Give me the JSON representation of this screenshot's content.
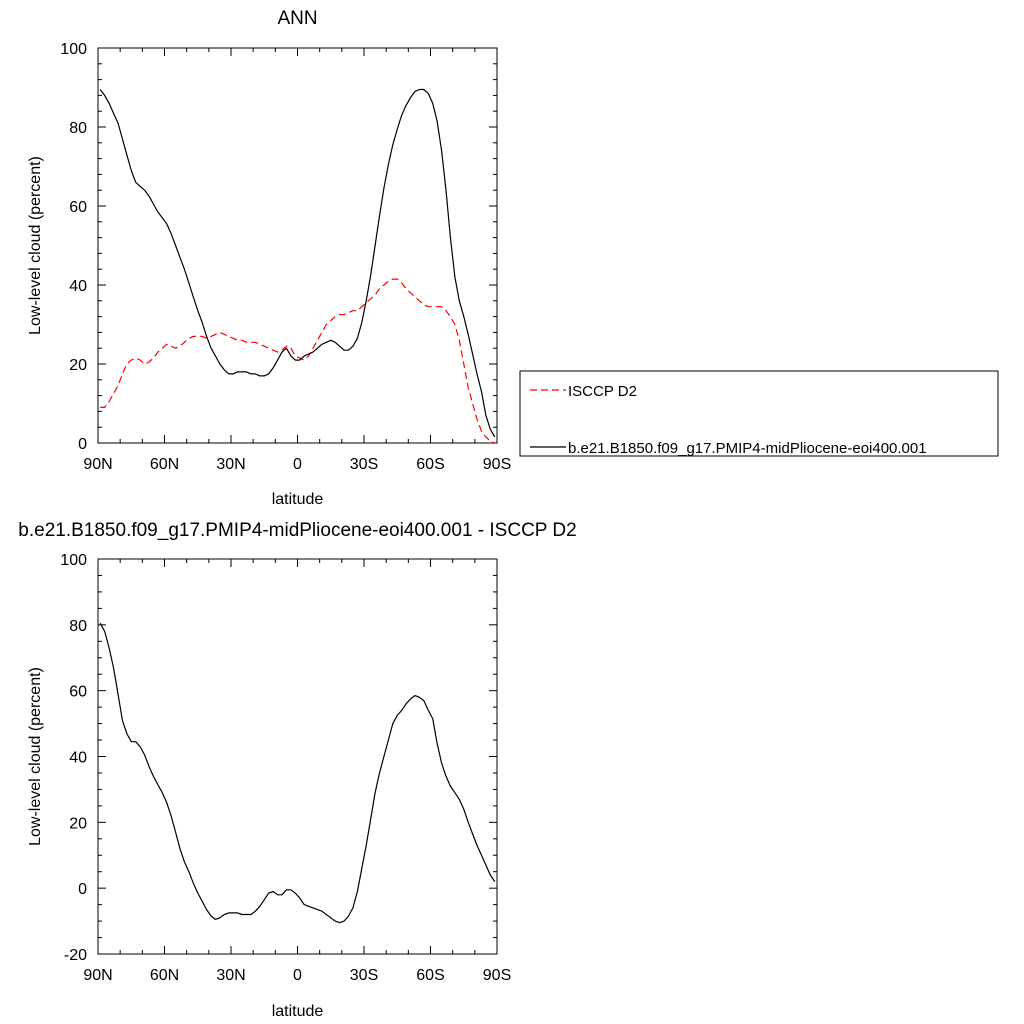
{
  "chart_data": [
    {
      "type": "line",
      "title": "ANN",
      "xlabel": "latitude",
      "ylabel": "Low-level cloud (percent)",
      "xlim": [
        90,
        -90
      ],
      "ylim": [
        0,
        100
      ],
      "x_ticks": [
        {
          "value": 90,
          "label": "90N"
        },
        {
          "value": 60,
          "label": "60N"
        },
        {
          "value": 30,
          "label": "30N"
        },
        {
          "value": 0,
          "label": "0"
        },
        {
          "value": -30,
          "label": "30S"
        },
        {
          "value": -60,
          "label": "60S"
        },
        {
          "value": -90,
          "label": "90S"
        }
      ],
      "y_ticks": [
        0,
        20,
        40,
        60,
        80,
        100
      ],
      "legend": {
        "placement": "right"
      },
      "series": [
        {
          "name": "ISCCP D2",
          "color": "#ff0000",
          "dash": "dashed",
          "x": [
            89,
            87,
            85,
            83,
            81,
            79,
            77,
            75,
            73,
            71,
            69,
            67,
            65,
            63,
            61,
            59,
            57,
            55,
            53,
            51,
            49,
            47,
            45,
            43,
            41,
            39,
            37,
            35,
            33,
            31,
            29,
            27,
            25,
            23,
            21,
            19,
            17,
            15,
            13,
            11,
            9,
            7,
            5,
            3,
            1,
            -1,
            -3,
            -5,
            -7,
            -9,
            -11,
            -13,
            -15,
            -17,
            -19,
            -21,
            -23,
            -25,
            -27,
            -29,
            -31,
            -33,
            -35,
            -37,
            -39,
            -41,
            -43,
            -45,
            -47,
            -49,
            -51,
            -53,
            -55,
            -57,
            -59,
            -61,
            -63,
            -65,
            -67,
            -69,
            -71,
            -73,
            -75,
            -77,
            -79,
            -81,
            -83,
            -85,
            -87,
            -89
          ],
          "y": [
            9,
            9,
            10.5,
            12.5,
            14.5,
            17.5,
            20,
            21,
            21.5,
            21,
            20,
            20.5,
            21.5,
            23,
            24,
            25,
            24.5,
            24,
            24.5,
            25.5,
            26.5,
            27,
            27,
            27,
            26.5,
            27,
            27.5,
            28,
            27.5,
            27,
            26.5,
            26,
            26,
            25.5,
            25.5,
            25.5,
            25,
            24.5,
            24,
            23.5,
            23,
            23.5,
            24.5,
            24,
            22,
            21.5,
            21,
            22,
            24,
            26,
            28,
            30,
            31,
            32,
            32.5,
            32.5,
            33,
            33.5,
            33.5,
            34.5,
            35.5,
            36.5,
            37.5,
            39,
            40,
            41,
            41.5,
            41.5,
            40.5,
            39,
            38,
            37,
            36,
            35,
            34.5,
            34.5,
            34.5,
            34.5,
            33.5,
            32,
            30,
            26,
            20,
            14,
            10,
            6,
            3,
            1.5,
            0.5,
            0
          ]
        },
        {
          "name": "b.e21.B1850.f09_g17.PMIP4-midPliocene-eoi400.001",
          "color": "#000000",
          "dash": "solid",
          "x": [
            89,
            87,
            85,
            83,
            81,
            79,
            77,
            75,
            73,
            71,
            69,
            67,
            65,
            63,
            61,
            59,
            57,
            55,
            53,
            51,
            49,
            47,
            45,
            43,
            41,
            39,
            37,
            35,
            33,
            31,
            29,
            27,
            25,
            23,
            21,
            19,
            17,
            15,
            13,
            11,
            9,
            7,
            5,
            3,
            1,
            -1,
            -3,
            -5,
            -7,
            -9,
            -11,
            -13,
            -15,
            -17,
            -19,
            -21,
            -23,
            -25,
            -27,
            -29,
            -31,
            -33,
            -35,
            -37,
            -39,
            -41,
            -43,
            -45,
            -47,
            -49,
            -51,
            -53,
            -55,
            -57,
            -59,
            -61,
            -63,
            -65,
            -67,
            -69,
            -71,
            -73,
            -75,
            -77,
            -79,
            -81,
            -83,
            -85,
            -87,
            -89
          ],
          "y": [
            89.5,
            88,
            86,
            83.5,
            81,
            77,
            73,
            69,
            66,
            65,
            64,
            62.5,
            60.5,
            58.5,
            57,
            55.5,
            53,
            50,
            47,
            44,
            40.5,
            37,
            33.5,
            30.5,
            27,
            24,
            22,
            20,
            18.5,
            17.5,
            17.5,
            18,
            18,
            18,
            17.5,
            17.5,
            17,
            17,
            17.5,
            19,
            21,
            23,
            24,
            22,
            21,
            21,
            22,
            22.5,
            23,
            24,
            25,
            25.5,
            26,
            25.5,
            24.5,
            23.5,
            23.5,
            24.5,
            26.5,
            30.5,
            36,
            42.5,
            50,
            57.5,
            64.5,
            70.5,
            75.5,
            79.5,
            83,
            85.5,
            87.5,
            89,
            89.5,
            89.5,
            88.5,
            86,
            81.5,
            74,
            64,
            52,
            42,
            36,
            32,
            27.5,
            22.5,
            17.5,
            13,
            7,
            3.5,
            1.5
          ]
        }
      ]
    },
    {
      "type": "line",
      "title": "b.e21.B1850.f09_g17.PMIP4-midPliocene-eoi400.001 - ISCCP D2",
      "xlabel": "latitude",
      "ylabel": "Low-level cloud (percent)",
      "xlim": [
        90,
        -90
      ],
      "ylim": [
        -20,
        100
      ],
      "x_ticks": [
        {
          "value": 90,
          "label": "90N"
        },
        {
          "value": 60,
          "label": "60N"
        },
        {
          "value": 30,
          "label": "30N"
        },
        {
          "value": 0,
          "label": "0"
        },
        {
          "value": -30,
          "label": "30S"
        },
        {
          "value": -60,
          "label": "60S"
        },
        {
          "value": -90,
          "label": "90S"
        }
      ],
      "y_ticks": [
        -20,
        0,
        20,
        40,
        60,
        80,
        100
      ],
      "series": [
        {
          "color": "#000000",
          "dash": "solid",
          "x": [
            89,
            87,
            85,
            83,
            81,
            79,
            77,
            75,
            73,
            71,
            69,
            67,
            65,
            63,
            61,
            59,
            57,
            55,
            53,
            51,
            49,
            47,
            45,
            43,
            41,
            39,
            37,
            35,
            33,
            31,
            29,
            27,
            25,
            23,
            21,
            19,
            17,
            15,
            13,
            11,
            9,
            7,
            5,
            3,
            1,
            -1,
            -3,
            -5,
            -7,
            -9,
            -11,
            -13,
            -15,
            -17,
            -19,
            -21,
            -23,
            -25,
            -27,
            -29,
            -31,
            -33,
            -35,
            -37,
            -39,
            -41,
            -43,
            -45,
            -47,
            -49,
            -51,
            -53,
            -55,
            -57,
            -59,
            -61,
            -63,
            -65,
            -67,
            -69,
            -71,
            -73,
            -75,
            -77,
            -79,
            -81,
            -83,
            -85,
            -87,
            -89
          ],
          "y": [
            80.5,
            78,
            73,
            67,
            59,
            51,
            47,
            44.5,
            44.5,
            43,
            40.5,
            37,
            34,
            31.5,
            29,
            26,
            22,
            17,
            12,
            8,
            5,
            1.5,
            -1.5,
            -4,
            -6.5,
            -8.5,
            -9.5,
            -9,
            -8,
            -7.5,
            -7.5,
            -7.5,
            -8,
            -8,
            -8,
            -7,
            -5.5,
            -3.5,
            -1.5,
            -1,
            -2,
            -2,
            -0.5,
            -0.5,
            -1.5,
            -3,
            -5,
            -5.5,
            -6,
            -6.5,
            -7,
            -8,
            -9,
            -10,
            -10.5,
            -10,
            -8.5,
            -6,
            -1,
            6,
            13,
            21,
            29,
            35,
            40,
            45,
            50,
            52.5,
            54,
            56,
            57.5,
            58.5,
            58,
            57,
            54,
            51.5,
            44,
            38,
            34,
            31,
            29,
            27,
            24,
            20,
            16.5,
            13,
            10,
            7,
            4,
            2
          ]
        }
      ]
    }
  ]
}
